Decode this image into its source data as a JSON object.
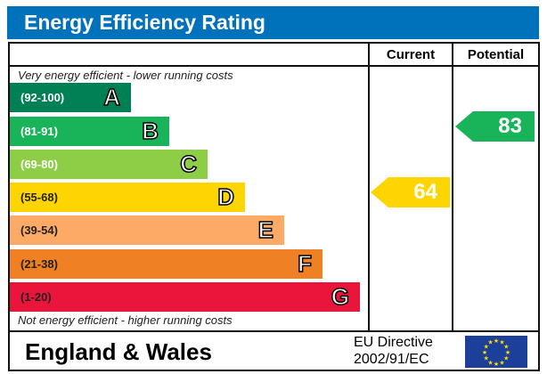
{
  "title": "Energy Efficiency Rating",
  "columns": {
    "current": "Current",
    "potential": "Potential"
  },
  "top_note": "Very energy efficient - lower running costs",
  "bottom_note": "Not energy efficient - higher running costs",
  "chart_data": {
    "type": "bar",
    "bands": [
      {
        "range": "(92-100)",
        "letter": "A",
        "color": "#008054"
      },
      {
        "range": "(81-91)",
        "letter": "B",
        "color": "#19b459"
      },
      {
        "range": "(69-80)",
        "letter": "C",
        "color": "#8dce46"
      },
      {
        "range": "(55-68)",
        "letter": "D",
        "color": "#ffd500"
      },
      {
        "range": "(39-54)",
        "letter": "E",
        "color": "#fcaa65"
      },
      {
        "range": "(21-38)",
        "letter": "F",
        "color": "#ef8023"
      },
      {
        "range": "(1-20)",
        "letter": "G",
        "color": "#e9153b"
      }
    ],
    "current": {
      "value": 64,
      "band": "D",
      "color": "#ffd500"
    },
    "potential": {
      "value": 83,
      "band": "B",
      "color": "#19b459"
    }
  },
  "footer": {
    "region": "England & Wales",
    "directive_line1": "EU Directive",
    "directive_line2": "2002/91/EC",
    "flag": "eu-flag-icon"
  },
  "colors": {
    "title_bar": "#0072bc"
  }
}
